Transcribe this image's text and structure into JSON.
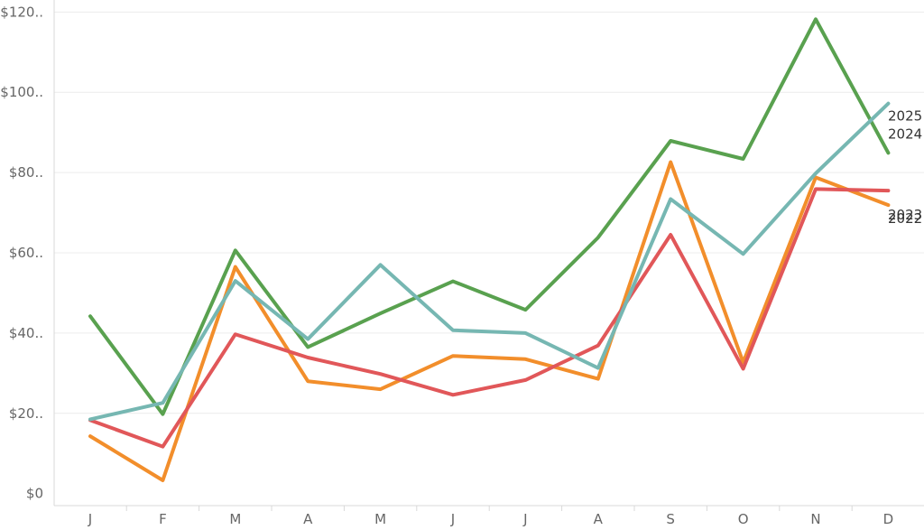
{
  "chart_data": {
    "type": "line",
    "title": "",
    "xlabel": "",
    "ylabel": "",
    "categories": [
      "J",
      "F",
      "M",
      "A",
      "M",
      "J",
      "J",
      "A",
      "S",
      "O",
      "N",
      "D"
    ],
    "y_ticks": [
      0,
      20,
      40,
      60,
      80,
      100,
      120
    ],
    "y_tick_labels": [
      "$0",
      "$20..",
      "$40..",
      "$60..",
      "$80..",
      "$100..",
      "$120.."
    ],
    "ylim": [
      -3,
      123
    ],
    "grid": true,
    "legend": "none (series labelled at line ends)",
    "series": [
      {
        "name": "2022",
        "color": "#f28e2b",
        "values": [
          14.3,
          3.3,
          56.5,
          28.0,
          26.0,
          34.3,
          33.5,
          28.6,
          82.6,
          32.7,
          78.8,
          71.9
        ]
      },
      {
        "name": "2023",
        "color": "#e15759",
        "values": [
          18.3,
          11.7,
          39.7,
          33.9,
          29.8,
          24.6,
          28.3,
          36.9,
          64.5,
          31.1,
          75.9,
          75.5
        ]
      },
      {
        "name": "2024",
        "color": "#59a14f",
        "values": [
          44.2,
          19.8,
          60.6,
          36.5,
          44.9,
          52.9,
          45.8,
          63.8,
          87.9,
          83.4,
          118.2,
          84.9
        ]
      },
      {
        "name": "2025",
        "color": "#76b7b2",
        "values": [
          18.5,
          22.6,
          53.0,
          38.5,
          57.0,
          40.7,
          40.0,
          31.3,
          73.4,
          59.7,
          79.8,
          97.2
        ]
      }
    ]
  }
}
